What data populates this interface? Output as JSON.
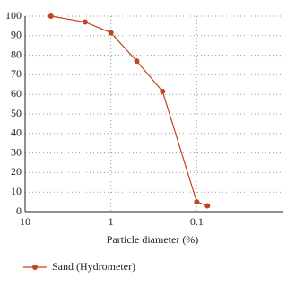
{
  "chart_data": {
    "type": "line",
    "x_label": "Particle diameter (%)",
    "x": [
      5,
      2,
      1,
      0.5,
      0.25,
      0.1,
      0.075
    ],
    "series": [
      {
        "name": "Sand (Hydrometer)",
        "color": "#c1441d",
        "values": [
          100,
          97,
          91.5,
          77,
          61.5,
          5,
          3
        ]
      }
    ],
    "xscale": "log",
    "xlim": [
      10,
      0.01
    ],
    "xticks": [
      10,
      1,
      0.1
    ],
    "ylim": [
      0,
      100
    ],
    "yticks": [
      0,
      10,
      20,
      30,
      40,
      50,
      60,
      70,
      80,
      90,
      100
    ],
    "grid": true,
    "legend": "bottom"
  }
}
